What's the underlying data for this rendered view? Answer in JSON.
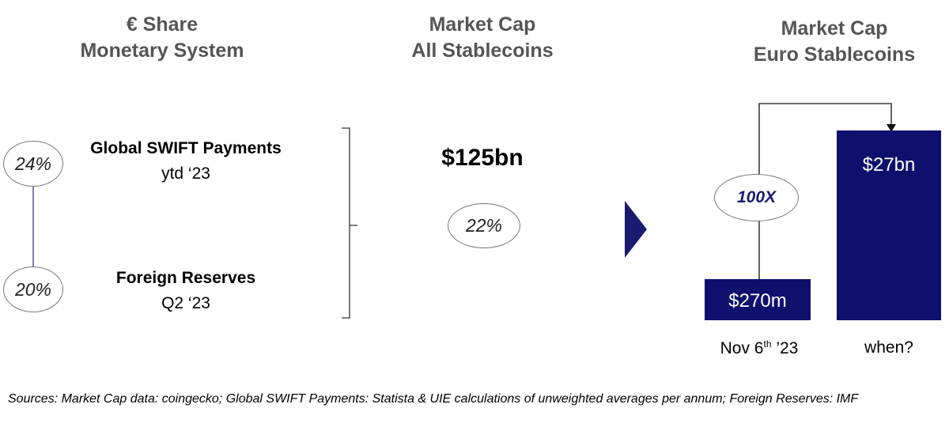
{
  "colors": {
    "bar": "#0f0f6e",
    "arrow": "#1a1a70",
    "title": "#555555",
    "connector": "#2b2b7a"
  },
  "left": {
    "title_line1": "€ Share",
    "title_line2": "Monetary System",
    "items": [
      {
        "percent": "24%",
        "label": "Global SWIFT Payments",
        "sublabel": "ytd ‘23"
      },
      {
        "percent": "20%",
        "label": "Foreign Reserves",
        "sublabel": "Q2 ‘23"
      }
    ]
  },
  "middle": {
    "title_line1": "Market Cap",
    "title_line2": "All Stablecoins",
    "value": "$125bn",
    "share": "22%"
  },
  "right": {
    "title_line1": "Market Cap",
    "title_line2": "Euro Stablecoins",
    "multiplier": "100X"
  },
  "chart_data": {
    "type": "bar",
    "title": "Market Cap Euro Stablecoins",
    "categories": [
      "Nov 6th ’23",
      "when?"
    ],
    "category_parts": [
      {
        "pre": "Nov 6",
        "sup": "th",
        "post": " ’23"
      },
      {
        "pre": "when?",
        "sup": "",
        "post": ""
      }
    ],
    "values": [
      0.27,
      27
    ],
    "unit": "USD bn",
    "value_labels": [
      "$270m",
      "$27bn"
    ],
    "annotation": "100X"
  },
  "sources": "Sources: Market Cap data: coingecko; Global SWIFT Payments: Statista & UIE calculations of unweighted averages per annum; Foreign Reserves: IMF"
}
